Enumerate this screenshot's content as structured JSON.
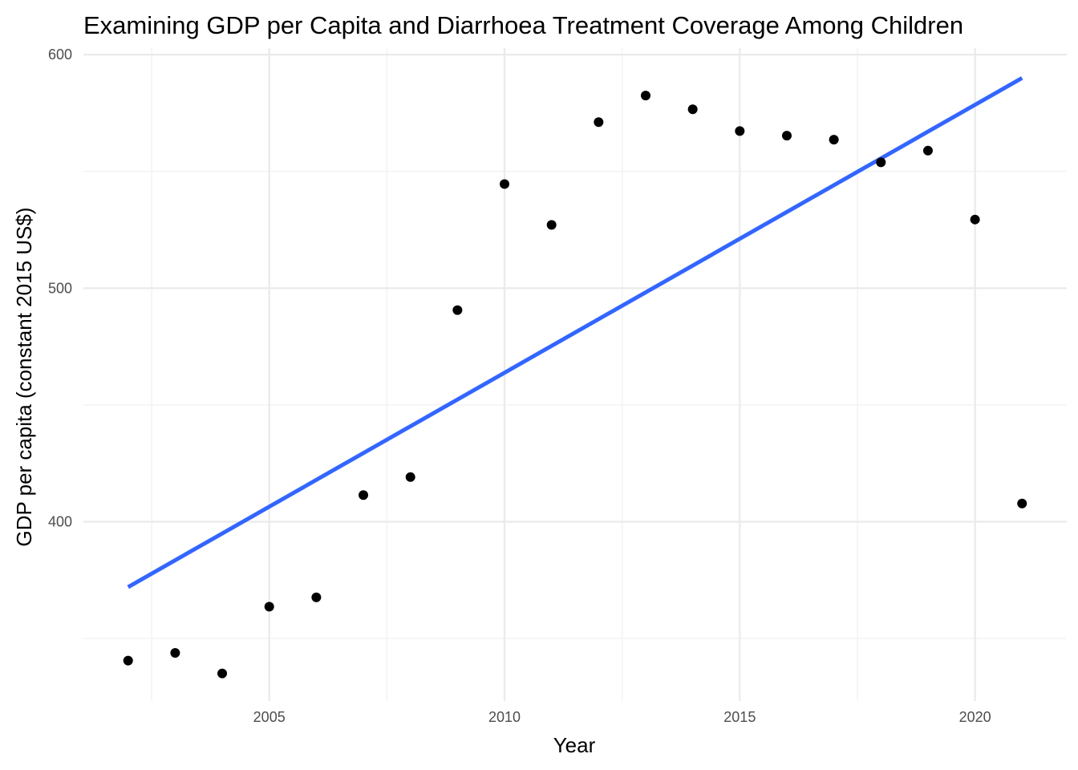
{
  "chart_data": {
    "type": "scatter",
    "title": "Examining GDP per Capita and Diarrhoea Treatment Coverage Among Children",
    "xlabel": "Year",
    "ylabel": "GDP per capita (constant 2015 US$)",
    "xlim": [
      2001.05,
      2021.95
    ],
    "ylim": [
      323.2,
      602.8
    ],
    "x_ticks": [
      2005,
      2010,
      2015,
      2020
    ],
    "y_ticks": [
      400,
      500,
      600
    ],
    "grid": true,
    "legend": "none",
    "points": {
      "x": [
        2002,
        2003,
        2004,
        2005,
        2006,
        2007,
        2008,
        2009,
        2010,
        2011,
        2012,
        2013,
        2014,
        2015,
        2016,
        2017,
        2018,
        2019,
        2020,
        2021
      ],
      "y": [
        340.5,
        343.8,
        335.0,
        363.6,
        367.6,
        411.4,
        419.1,
        490.6,
        544.6,
        527.1,
        571.1,
        582.5,
        576.6,
        567.3,
        565.3,
        563.6,
        553.9,
        558.9,
        529.4,
        407.8
      ],
      "color": "#000000"
    },
    "trend_line": {
      "x": [
        2002,
        2021
      ],
      "y": [
        372.0,
        590.0
      ],
      "color": "#3366FF"
    }
  }
}
